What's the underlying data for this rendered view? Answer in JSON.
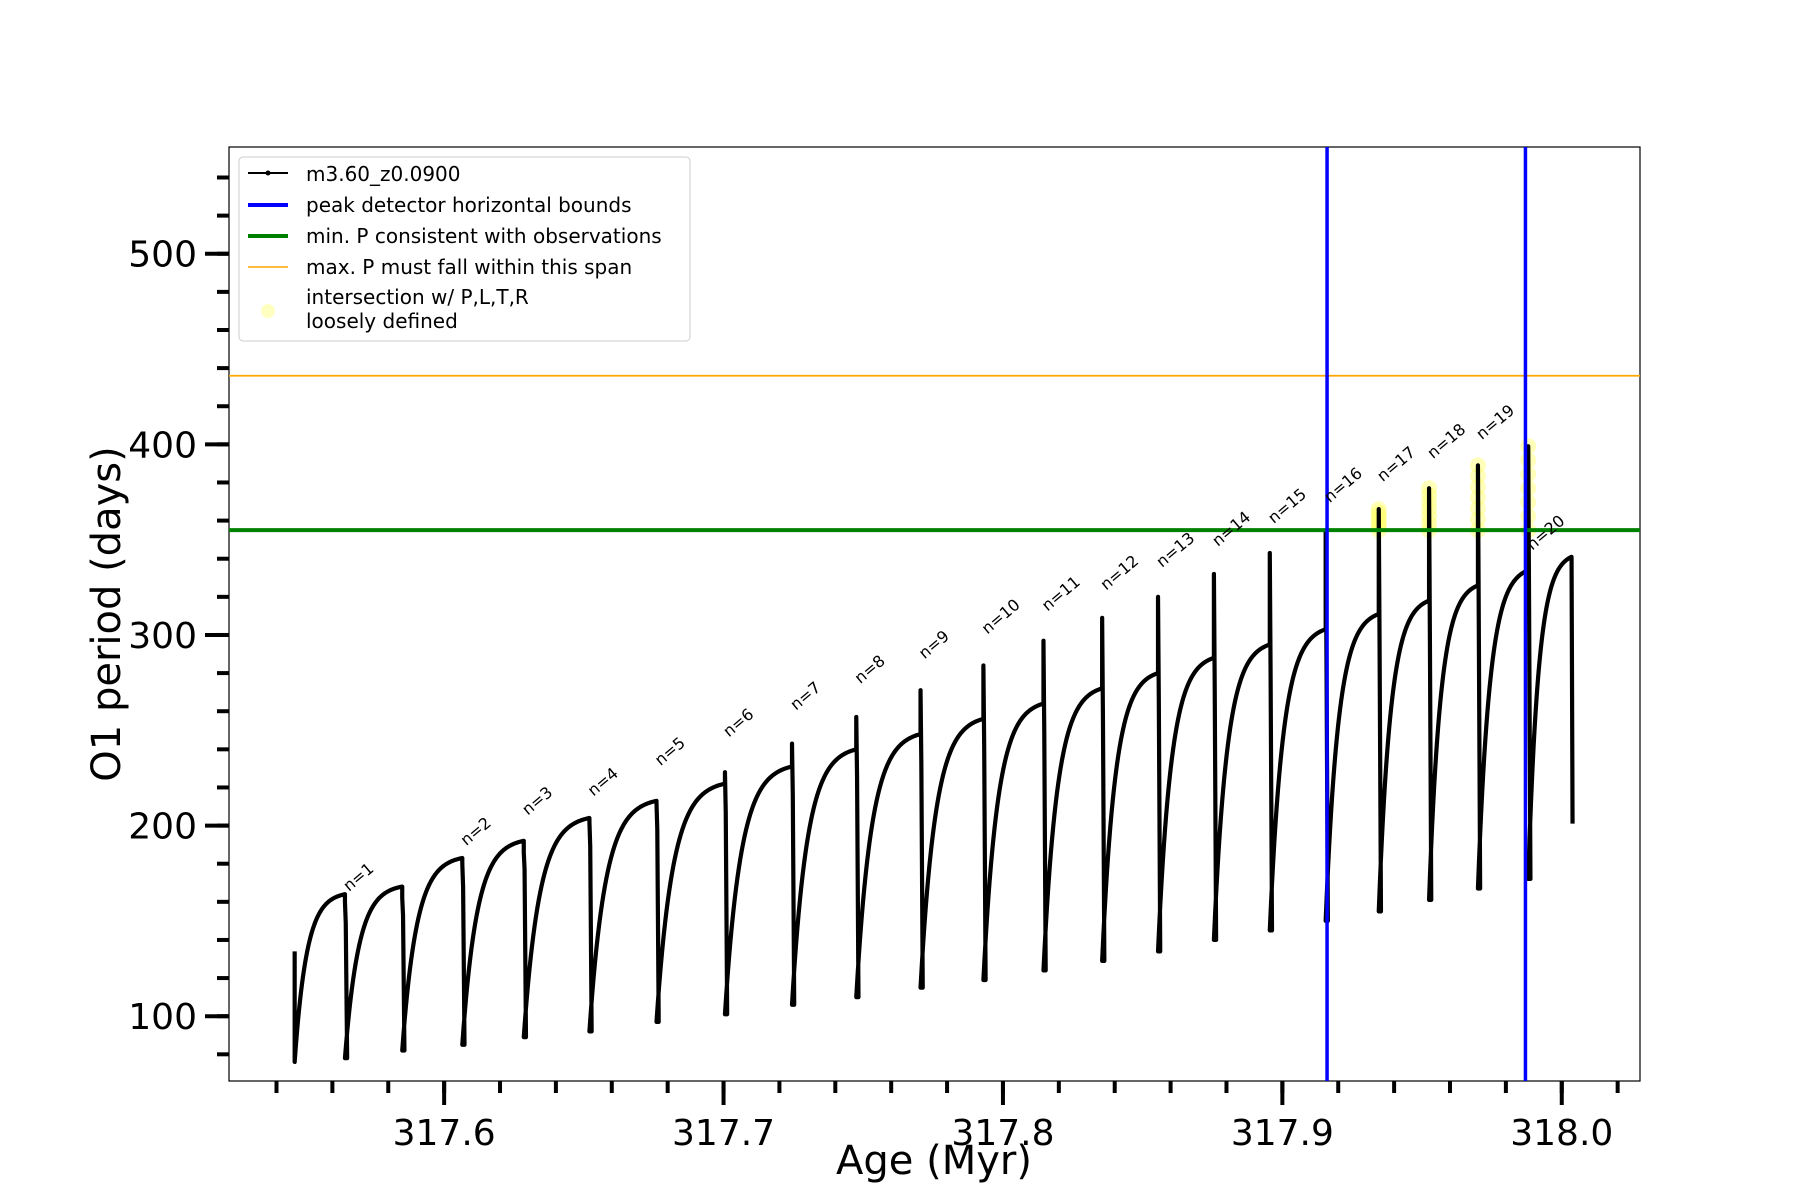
{
  "chart_data": {
    "type": "line",
    "title": "",
    "xlabel": "Age (Myr)",
    "ylabel": "O1 period (days)",
    "xlim": [
      317.523,
      318.028
    ],
    "ylim": [
      66,
      556
    ],
    "x_ticks": [
      317.6,
      317.7,
      317.8,
      317.9,
      318.0
    ],
    "x_tick_labels": [
      "317.6",
      "317.7",
      "317.8",
      "317.9",
      "318.0"
    ],
    "x_minor_step": 0.02,
    "y_ticks": [
      100,
      200,
      300,
      400,
      500
    ],
    "y_tick_labels": [
      "100",
      "200",
      "300",
      "400",
      "500"
    ],
    "y_minor_step": 20,
    "grid": false,
    "legend_position": "top-left",
    "legend": [
      {
        "label": "m3.60_z0.0900",
        "style": "line-marker",
        "color": "#000000"
      },
      {
        "label": "peak detector horizontal bounds",
        "style": "thick-line",
        "color": "#0000ff"
      },
      {
        "label": "min. P consistent with observations",
        "style": "thick-line",
        "color": "#008000"
      },
      {
        "label": "max. P must fall within this span",
        "style": "thin-line",
        "color": "#ffa500"
      },
      {
        "label": "intersection w/ P,L,T,R",
        "label2": "loosely defined",
        "style": "dot",
        "color": "#ffff99"
      }
    ],
    "vertical_lines": {
      "label": "peak detector horizontal bounds",
      "color": "#0000ff",
      "x": [
        317.916,
        317.987
      ]
    },
    "horizontal_lines": [
      {
        "label": "min. P consistent with observations",
        "color": "#008000",
        "y": 355
      },
      {
        "label": "max. P must fall within this span",
        "color": "#ffa500",
        "y": 436
      }
    ],
    "series_name": "m3.60_z0.0900",
    "series_color": "#000000",
    "start": {
      "age": 317.5465,
      "period": 134
    },
    "cycles": [
      {
        "age_start": 317.5465,
        "period_start": 76,
        "age_end": 317.5645,
        "period_end": 164,
        "pulse_to": 160,
        "dip_to": 78,
        "label": ""
      },
      {
        "age_start": 317.5645,
        "period_start": 78,
        "age_end": 317.585,
        "period_end": 168,
        "pulse_to": 162,
        "dip_to": 82,
        "label": "n=1"
      },
      {
        "age_start": 317.585,
        "period_start": 82,
        "age_end": 317.6065,
        "period_end": 183,
        "pulse_to": 180,
        "dip_to": 85,
        "label": ""
      },
      {
        "age_start": 317.6065,
        "period_start": 85,
        "age_end": 317.6285,
        "period_end": 192,
        "pulse_to": 186,
        "dip_to": 89,
        "label": "n=2"
      },
      {
        "age_start": 317.6285,
        "period_start": 89,
        "age_end": 317.652,
        "period_end": 204,
        "pulse_to": 202,
        "dip_to": 92,
        "label": "n=3"
      },
      {
        "age_start": 317.652,
        "period_start": 92,
        "age_end": 317.676,
        "period_end": 213,
        "pulse_to": 212,
        "dip_to": 97,
        "label": "n=4"
      },
      {
        "age_start": 317.676,
        "period_start": 97,
        "age_end": 317.7005,
        "period_end": 222,
        "pulse_to": 228,
        "dip_to": 101,
        "label": "n=5"
      },
      {
        "age_start": 317.7005,
        "period_start": 101,
        "age_end": 317.7245,
        "period_end": 231,
        "pulse_to": 243,
        "dip_to": 106,
        "label": "n=6"
      },
      {
        "age_start": 317.7245,
        "period_start": 106,
        "age_end": 317.7475,
        "period_end": 240,
        "pulse_to": 257,
        "dip_to": 110,
        "label": "n=7"
      },
      {
        "age_start": 317.7475,
        "period_start": 110,
        "age_end": 317.7705,
        "period_end": 248,
        "pulse_to": 271,
        "dip_to": 115,
        "label": "n=8"
      },
      {
        "age_start": 317.7705,
        "period_start": 115,
        "age_end": 317.793,
        "period_end": 256,
        "pulse_to": 284,
        "dip_to": 119,
        "label": "n=9"
      },
      {
        "age_start": 317.793,
        "period_start": 119,
        "age_end": 317.8145,
        "period_end": 264,
        "pulse_to": 297,
        "dip_to": 124,
        "label": "n=10"
      },
      {
        "age_start": 317.8145,
        "period_start": 124,
        "age_end": 317.8355,
        "period_end": 272,
        "pulse_to": 309,
        "dip_to": 129,
        "label": "n=11"
      },
      {
        "age_start": 317.8355,
        "period_start": 129,
        "age_end": 317.8555,
        "period_end": 280,
        "pulse_to": 320,
        "dip_to": 134,
        "label": "n=12"
      },
      {
        "age_start": 317.8555,
        "period_start": 134,
        "age_end": 317.8755,
        "period_end": 288,
        "pulse_to": 332,
        "dip_to": 140,
        "label": "n=13"
      },
      {
        "age_start": 317.8755,
        "period_start": 140,
        "age_end": 317.8955,
        "period_end": 295,
        "pulse_to": 343,
        "dip_to": 145,
        "label": "n=14"
      },
      {
        "age_start": 317.8955,
        "period_start": 145,
        "age_end": 317.9155,
        "period_end": 303,
        "pulse_to": 355,
        "dip_to": 150,
        "label": "n=15"
      },
      {
        "age_start": 317.9155,
        "period_start": 150,
        "age_end": 317.9345,
        "period_end": 311,
        "pulse_to": 366,
        "dip_to": 155,
        "label": "n=16"
      },
      {
        "age_start": 317.9345,
        "period_start": 155,
        "age_end": 317.9525,
        "period_end": 318,
        "pulse_to": 377,
        "dip_to": 161,
        "label": "n=17"
      },
      {
        "age_start": 317.9525,
        "period_start": 161,
        "age_end": 317.97,
        "period_end": 326,
        "pulse_to": 389,
        "dip_to": 167,
        "label": "n=18"
      },
      {
        "age_start": 317.97,
        "period_start": 167,
        "age_end": 317.988,
        "period_end": 334,
        "pulse_to": 399,
        "dip_to": 172,
        "label": "n=19"
      },
      {
        "age_start": 317.988,
        "period_start": 172,
        "age_end": 318.0035,
        "period_end": 341,
        "pulse_to": 341,
        "dip_to": 201,
        "label": "n=20"
      }
    ],
    "end": {
      "age": 318.0035,
      "period": 201
    },
    "intersections": [
      {
        "age": 317.9345,
        "p_min": 355,
        "p_max": 366
      },
      {
        "age": 317.9525,
        "p_min": 355,
        "p_max": 377
      },
      {
        "age": 317.97,
        "p_min": 355,
        "p_max": 389
      },
      {
        "age": 317.988,
        "p_min": 355,
        "p_max": 399
      }
    ]
  }
}
